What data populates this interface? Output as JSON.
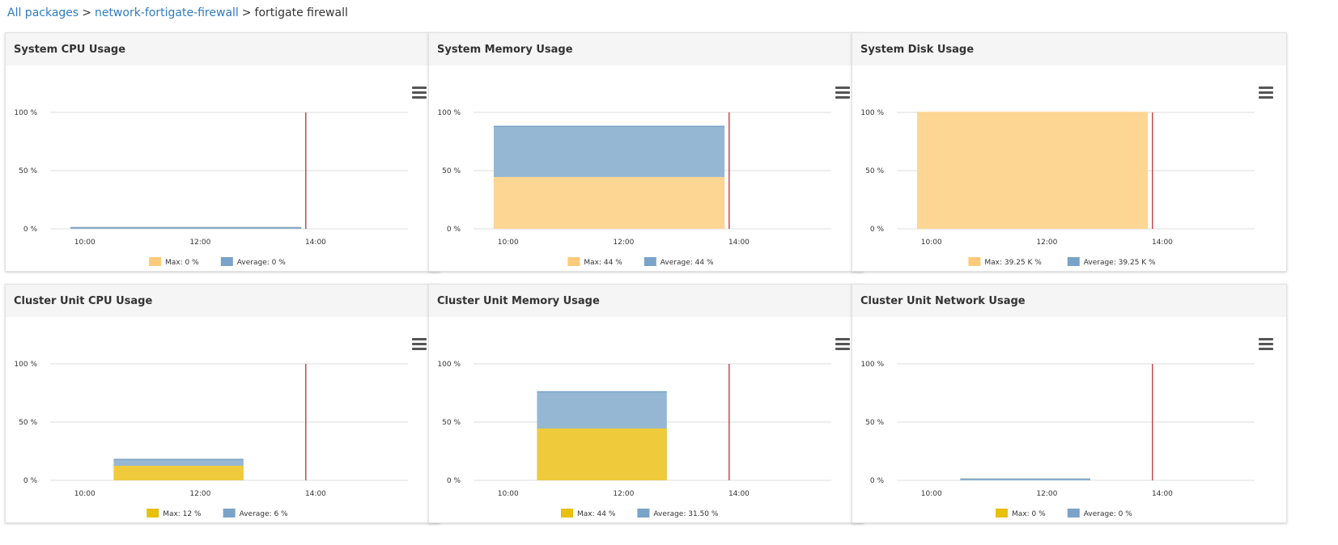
{
  "breadcrumb": {
    "items": [
      "All packages",
      "network-fortigate-firewall"
    ],
    "separator": ">",
    "current": "fortigate firewall"
  },
  "colors": {
    "max_orange": "#fdd694",
    "avg_blue": "#96b7d3",
    "max_yellow": "#efcb3c",
    "legend_orange": "#fdca7b",
    "legend_yellow": "#e8c00e",
    "legend_blue": "#7aa3c8",
    "now_line": "#b22222",
    "grid": "#dddddd"
  },
  "panels": [
    {
      "title": "System CPU Usage",
      "chart_data": {
        "type": "area",
        "yticks": [
          "100 %",
          "50 %",
          "0 %"
        ],
        "ylim": [
          0,
          100
        ],
        "xticks": [
          "10:00",
          "12:00",
          "14:00"
        ],
        "x_range_hours": [
          9.4,
          15.6
        ],
        "now_hour": 13.83,
        "series": [
          {
            "name": "Max: 0 %",
            "color": "max_orange",
            "start": 9.75,
            "end": 13.75,
            "value": 0
          },
          {
            "name": "Average: 0 %",
            "color": "avg_blue",
            "start": 9.75,
            "end": 13.75,
            "value": 0
          }
        ],
        "legend": [
          {
            "label": "Max: 0 %",
            "color": "legend_orange"
          },
          {
            "label": "Average: 0 %",
            "color": "legend_blue"
          }
        ]
      }
    },
    {
      "title": "System Memory Usage",
      "chart_data": {
        "type": "area",
        "yticks": [
          "100 %",
          "50 %",
          "0 %"
        ],
        "ylim": [
          0,
          100
        ],
        "xticks": [
          "10:00",
          "12:00",
          "14:00"
        ],
        "x_range_hours": [
          9.4,
          15.6
        ],
        "now_hour": 13.83,
        "series": [
          {
            "name": "Max: 44 %",
            "color": "max_orange",
            "start": 9.75,
            "end": 13.75,
            "value": 44
          },
          {
            "name": "Average: 44 %",
            "color": "avg_blue",
            "start": 9.75,
            "end": 13.75,
            "value": 88
          }
        ],
        "legend": [
          {
            "label": "Max: 44 %",
            "color": "legend_orange"
          },
          {
            "label": "Average: 44 %",
            "color": "legend_blue"
          }
        ]
      }
    },
    {
      "title": "System Disk Usage",
      "chart_data": {
        "type": "area",
        "yticks": [
          "100 %",
          "50 %",
          "0 %"
        ],
        "ylim": [
          0,
          100
        ],
        "xticks": [
          "10:00",
          "12:00",
          "14:00"
        ],
        "x_range_hours": [
          9.4,
          15.6
        ],
        "now_hour": 13.83,
        "series": [
          {
            "name": "Max: 39.25 K %",
            "color": "max_orange",
            "start": 9.75,
            "end": 13.75,
            "value": 100
          }
        ],
        "legend": [
          {
            "label": "Max: 39.25 K %",
            "color": "legend_orange"
          },
          {
            "label": "Average: 39.25 K %",
            "color": "legend_blue"
          }
        ]
      }
    },
    {
      "title": "Cluster Unit CPU Usage",
      "chart_data": {
        "type": "area",
        "yticks": [
          "100 %",
          "50 %",
          "0 %"
        ],
        "ylim": [
          0,
          100
        ],
        "xticks": [
          "10:00",
          "12:00",
          "14:00"
        ],
        "x_range_hours": [
          9.4,
          15.6
        ],
        "now_hour": 13.83,
        "series": [
          {
            "name": "Max: 12 %",
            "color": "max_yellow",
            "start": 10.5,
            "end": 12.75,
            "value": 12
          },
          {
            "name": "Average: 6 %",
            "color": "avg_blue",
            "start": 10.5,
            "end": 12.75,
            "value": 18
          }
        ],
        "legend": [
          {
            "label": "Max: 12 %",
            "color": "legend_yellow"
          },
          {
            "label": "Average: 6 %",
            "color": "legend_blue"
          }
        ]
      }
    },
    {
      "title": "Cluster Unit Memory Usage",
      "chart_data": {
        "type": "area",
        "yticks": [
          "100 %",
          "50 %",
          "0 %"
        ],
        "ylim": [
          0,
          100
        ],
        "xticks": [
          "10:00",
          "12:00",
          "14:00"
        ],
        "x_range_hours": [
          9.4,
          15.6
        ],
        "now_hour": 13.83,
        "series": [
          {
            "name": "Max: 44 %",
            "color": "max_yellow",
            "start": 10.5,
            "end": 12.75,
            "value": 44
          },
          {
            "name": "Average: 31.50 %",
            "color": "avg_blue",
            "start": 10.5,
            "end": 12.75,
            "value": 76
          }
        ],
        "legend": [
          {
            "label": "Max: 44 %",
            "color": "legend_yellow"
          },
          {
            "label": "Average: 31.50 %",
            "color": "legend_blue"
          }
        ]
      }
    },
    {
      "title": "Cluster Unit Network Usage",
      "chart_data": {
        "type": "area",
        "yticks": [
          "100 %",
          "50 %",
          "0 %"
        ],
        "ylim": [
          0,
          100
        ],
        "xticks": [
          "10:00",
          "12:00",
          "14:00"
        ],
        "x_range_hours": [
          9.4,
          15.6
        ],
        "now_hour": 13.83,
        "series": [
          {
            "name": "Max: 0 %",
            "color": "max_yellow",
            "start": 10.5,
            "end": 12.75,
            "value": 0
          },
          {
            "name": "Average: 0 %",
            "color": "avg_blue",
            "start": 10.5,
            "end": 12.75,
            "value": 0
          }
        ],
        "legend": [
          {
            "label": "Max: 0 %",
            "color": "legend_yellow"
          },
          {
            "label": "Average: 0 %",
            "color": "legend_blue"
          }
        ]
      }
    }
  ]
}
